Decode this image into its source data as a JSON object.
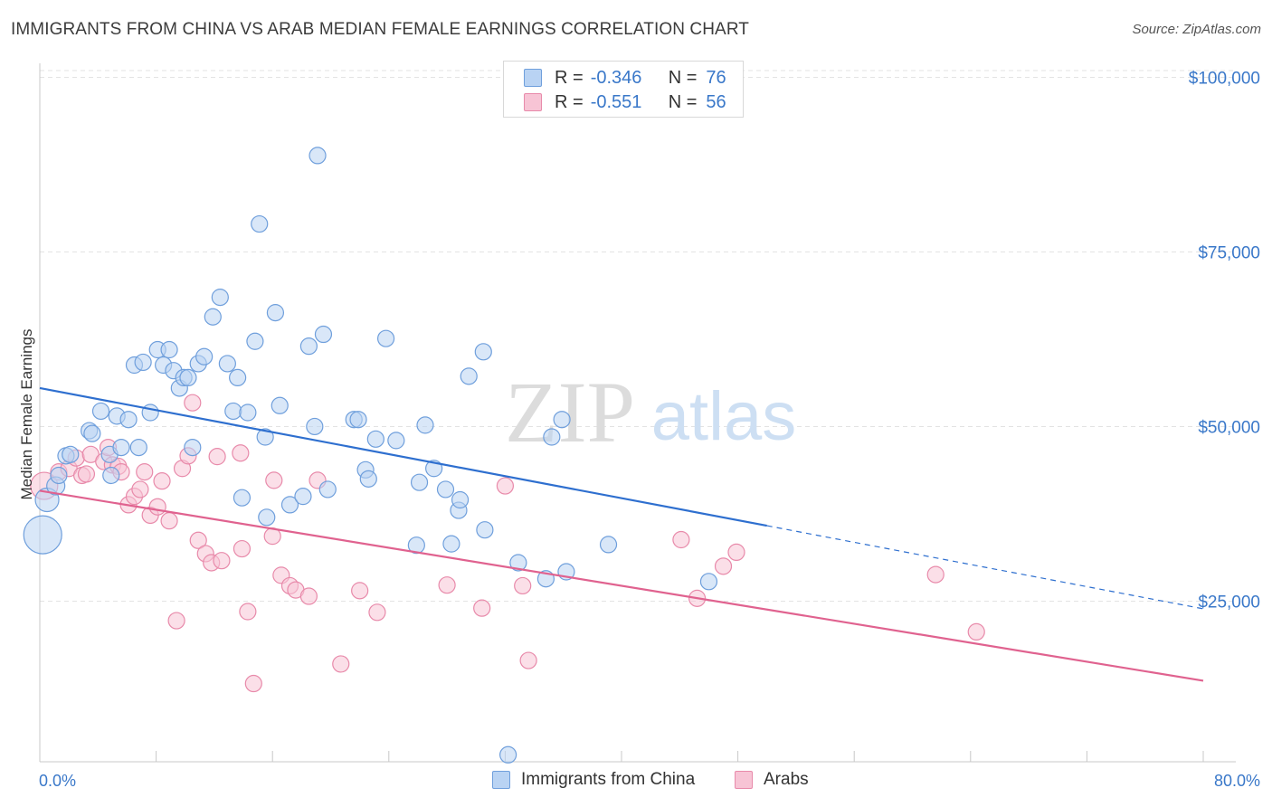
{
  "title": "IMMIGRANTS FROM CHINA VS ARAB MEDIAN FEMALE EARNINGS CORRELATION CHART",
  "source": "Source: ZipAtlas.com",
  "watermark": {
    "zip": "ZIP",
    "atlas": "atlas"
  },
  "legend": {
    "series1": {
      "r_label": "R =",
      "r_value": "-0.346",
      "n_label": "N =",
      "n_value": "76"
    },
    "series2": {
      "r_label": "R =",
      "r_value": "-0.551",
      "n_label": "N =",
      "n_value": "56"
    }
  },
  "colors": {
    "blue_fill": "#b9d3f3",
    "blue_stroke": "#6f9fdc",
    "blue_line": "#2e6fcf",
    "pink_fill": "#f7c4d5",
    "pink_stroke": "#e88aaa",
    "pink_line": "#e0628f",
    "tick_label": "#3a78c9",
    "grid": "#e3e3e3"
  },
  "chart_data": {
    "type": "scatter",
    "title": "IMMIGRANTS FROM CHINA VS ARAB MEDIAN FEMALE EARNINGS CORRELATION CHART",
    "xlabel": "",
    "ylabel": "Median Female Earnings",
    "xlim": [
      0,
      80
    ],
    "ylim": [
      2000,
      102000
    ],
    "x_tick_labels": [
      "0.0%",
      "80.0%"
    ],
    "y_ticks": [
      25000,
      50000,
      75000,
      100000
    ],
    "y_tick_labels": [
      "$25,000",
      "$50,000",
      "$75,000",
      "$100,000"
    ],
    "grid": "horizontal dashed",
    "legend_position": "bottom-center",
    "series": [
      {
        "name": "Immigrants from China",
        "trend": {
          "x": [
            0,
            50
          ],
          "y": [
            55500,
            35800
          ],
          "dashed_to": [
            80,
            23900
          ]
        },
        "points": [
          [
            0.2,
            34500,
            22
          ],
          [
            0.5,
            39500,
            14
          ],
          [
            1.1,
            41500,
            11
          ],
          [
            1.3,
            43000,
            10
          ],
          [
            1.8,
            45800,
            10
          ],
          [
            2.1,
            46000,
            10
          ],
          [
            3.4,
            49400,
            10
          ],
          [
            3.6,
            49000,
            10
          ],
          [
            4.2,
            52200,
            10
          ],
          [
            4.8,
            46000,
            10
          ],
          [
            4.9,
            43000,
            10
          ],
          [
            5.3,
            51500,
            10
          ],
          [
            5.6,
            47000,
            10
          ],
          [
            6.1,
            51000,
            10
          ],
          [
            6.5,
            58800,
            10
          ],
          [
            6.8,
            47000,
            10
          ],
          [
            7.1,
            59200,
            10
          ],
          [
            7.6,
            52000,
            10
          ],
          [
            8.1,
            61000,
            10
          ],
          [
            8.5,
            58800,
            10
          ],
          [
            8.9,
            61000,
            10
          ],
          [
            9.2,
            58000,
            10
          ],
          [
            9.6,
            55500,
            10
          ],
          [
            9.9,
            57000,
            10
          ],
          [
            10.2,
            57000,
            10
          ],
          [
            10.5,
            47000,
            10
          ],
          [
            10.9,
            59000,
            10
          ],
          [
            11.3,
            60000,
            10
          ],
          [
            11.9,
            65700,
            10
          ],
          [
            12.4,
            68500,
            10
          ],
          [
            12.9,
            59000,
            10
          ],
          [
            13.3,
            52200,
            10
          ],
          [
            13.6,
            57000,
            10
          ],
          [
            13.9,
            39800,
            10
          ],
          [
            14.3,
            52000,
            10
          ],
          [
            14.8,
            62200,
            10
          ],
          [
            15.1,
            79000,
            10
          ],
          [
            15.5,
            48500,
            10
          ],
          [
            15.6,
            37000,
            10
          ],
          [
            16.2,
            66300,
            10
          ],
          [
            16.5,
            53000,
            10
          ],
          [
            17.2,
            38800,
            10
          ],
          [
            18.1,
            40000,
            10
          ],
          [
            18.5,
            61500,
            10
          ],
          [
            18.9,
            50000,
            10
          ],
          [
            19.1,
            88800,
            10
          ],
          [
            19.5,
            63200,
            10
          ],
          [
            19.8,
            41000,
            10
          ],
          [
            21.6,
            51000,
            10
          ],
          [
            21.9,
            51000,
            10
          ],
          [
            22.4,
            43800,
            10
          ],
          [
            22.6,
            42500,
            10
          ],
          [
            23.1,
            48200,
            10
          ],
          [
            23.8,
            62600,
            10
          ],
          [
            24.5,
            48000,
            10
          ],
          [
            25.9,
            33000,
            10
          ],
          [
            26.1,
            42000,
            10
          ],
          [
            26.5,
            50200,
            10
          ],
          [
            27.1,
            44000,
            10
          ],
          [
            27.9,
            41000,
            10
          ],
          [
            28.3,
            33200,
            10
          ],
          [
            28.8,
            38000,
            10
          ],
          [
            28.9,
            39500,
            10
          ],
          [
            29.5,
            57200,
            10
          ],
          [
            30.5,
            60700,
            10
          ],
          [
            30.6,
            35200,
            10
          ],
          [
            32.2,
            3000,
            10
          ],
          [
            32.9,
            30500,
            10
          ],
          [
            34.8,
            28200,
            10
          ],
          [
            35.2,
            48500,
            10
          ],
          [
            35.9,
            51000,
            10
          ],
          [
            36.2,
            29200,
            10
          ],
          [
            39.1,
            33100,
            10
          ],
          [
            46.0,
            27800,
            10
          ]
        ]
      },
      {
        "name": "Arabs",
        "trend": {
          "x": [
            0,
            80
          ],
          "y": [
            40800,
            13600
          ]
        },
        "points": [
          [
            0.3,
            41500,
            16
          ],
          [
            1.3,
            43500,
            10
          ],
          [
            2.0,
            44000,
            10
          ],
          [
            2.5,
            45500,
            10
          ],
          [
            2.9,
            43000,
            10
          ],
          [
            3.2,
            43200,
            10
          ],
          [
            3.5,
            46000,
            10
          ],
          [
            4.4,
            45000,
            10
          ],
          [
            4.7,
            47000,
            10
          ],
          [
            5.0,
            44500,
            10
          ],
          [
            5.4,
            44300,
            10
          ],
          [
            5.6,
            43500,
            10
          ],
          [
            6.1,
            38800,
            10
          ],
          [
            6.5,
            40000,
            10
          ],
          [
            6.9,
            41000,
            10
          ],
          [
            7.2,
            43500,
            10
          ],
          [
            7.6,
            37300,
            10
          ],
          [
            8.1,
            38500,
            10
          ],
          [
            8.4,
            42200,
            10
          ],
          [
            8.9,
            36500,
            10
          ],
          [
            9.4,
            22200,
            10
          ],
          [
            9.8,
            44000,
            10
          ],
          [
            10.2,
            45800,
            10
          ],
          [
            10.5,
            53400,
            10
          ],
          [
            10.9,
            33700,
            10
          ],
          [
            11.4,
            31800,
            10
          ],
          [
            11.8,
            30500,
            10
          ],
          [
            12.2,
            45700,
            10
          ],
          [
            12.5,
            30800,
            10
          ],
          [
            13.8,
            46200,
            10
          ],
          [
            13.9,
            32500,
            10
          ],
          [
            14.3,
            23500,
            10
          ],
          [
            14.7,
            13200,
            10
          ],
          [
            16.1,
            42300,
            10
          ],
          [
            16.0,
            34300,
            10
          ],
          [
            16.6,
            28700,
            10
          ],
          [
            17.2,
            27200,
            10
          ],
          [
            17.6,
            26600,
            10
          ],
          [
            18.5,
            25700,
            10
          ],
          [
            19.1,
            42300,
            10
          ],
          [
            20.7,
            16000,
            10
          ],
          [
            22.0,
            26500,
            10
          ],
          [
            23.2,
            23400,
            10
          ],
          [
            28.0,
            27300,
            10
          ],
          [
            30.4,
            24000,
            10
          ],
          [
            32.0,
            41500,
            10
          ],
          [
            33.6,
            16500,
            10
          ],
          [
            33.2,
            27200,
            10
          ],
          [
            44.1,
            33800,
            10
          ],
          [
            45.2,
            25400,
            10
          ],
          [
            47.0,
            30000,
            10
          ],
          [
            47.9,
            32000,
            10
          ],
          [
            61.6,
            28800,
            10
          ],
          [
            64.4,
            20600,
            10
          ]
        ]
      }
    ]
  }
}
